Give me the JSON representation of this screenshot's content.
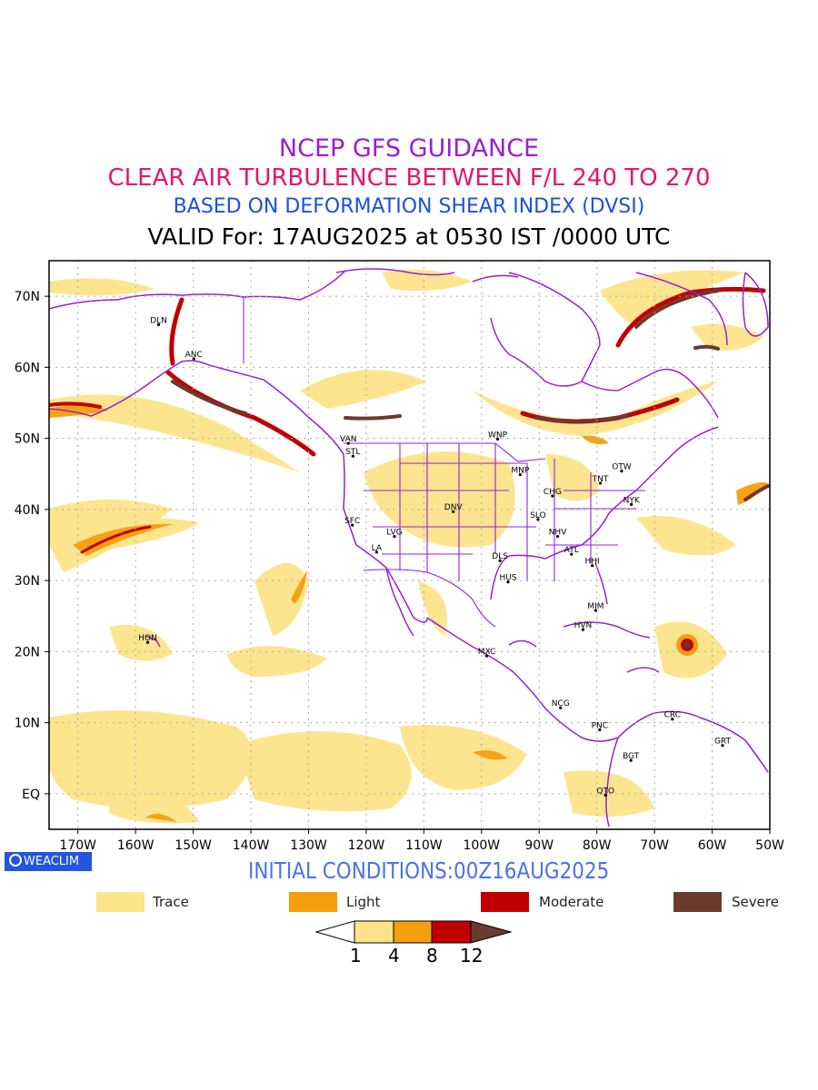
{
  "titles": {
    "line1": "NCEP GFS GUIDANCE",
    "line2": "CLEAR AIR TURBULENCE BETWEEN F/L 240 TO 270",
    "line3": "BASED ON DEFORMATION SHEAR INDEX (DVSI)",
    "line4": "VALID For: 17AUG2025 at 0530 IST /0000 UTC"
  },
  "map": {
    "lon_range": [
      -175,
      -50
    ],
    "lat_range": [
      -5,
      75
    ],
    "lat_tick_labels": [
      "EQ",
      "10N",
      "20N",
      "30N",
      "40N",
      "50N",
      "60N",
      "70N"
    ],
    "lat_tick_values": [
      0,
      10,
      20,
      30,
      40,
      50,
      60,
      70
    ],
    "lon_tick_labels": [
      "170W",
      "160W",
      "150W",
      "140W",
      "130W",
      "120W",
      "110W",
      "100W",
      "90W",
      "80W",
      "70W",
      "60W",
      "50W"
    ],
    "lon_tick_values": [
      -170,
      -160,
      -150,
      -140,
      -130,
      -120,
      -110,
      -100,
      -90,
      -80,
      -70,
      -60,
      -50
    ],
    "grid": "dotted",
    "colors": {
      "border": "#9a1fd1",
      "trace": "#fde48a",
      "light": "#f59e0b",
      "moderate": "#c00000",
      "severe": "#6b3a2e"
    },
    "stations": [
      {
        "id": "DLN",
        "lat": 66.0,
        "lon": -156.0
      },
      {
        "id": "ANC",
        "lat": 61.2,
        "lon": -149.9
      },
      {
        "id": "VAN",
        "lat": 49.3,
        "lon": -123.1
      },
      {
        "id": "STL",
        "lat": 47.5,
        "lon": -122.3
      },
      {
        "id": "WNP",
        "lat": 49.9,
        "lon": -97.2
      },
      {
        "id": "MNP",
        "lat": 44.9,
        "lon": -93.3
      },
      {
        "id": "OTW",
        "lat": 45.4,
        "lon": -75.7
      },
      {
        "id": "TNT",
        "lat": 43.7,
        "lon": -79.4
      },
      {
        "id": "CHG",
        "lat": 41.9,
        "lon": -87.7
      },
      {
        "id": "NYK",
        "lat": 40.7,
        "lon": -74.0
      },
      {
        "id": "DNV",
        "lat": 39.7,
        "lon": -104.9
      },
      {
        "id": "SFC",
        "lat": 37.8,
        "lon": -122.4
      },
      {
        "id": "SLO",
        "lat": 38.6,
        "lon": -90.2
      },
      {
        "id": "LVG",
        "lat": 36.2,
        "lon": -115.1
      },
      {
        "id": "NHV",
        "lat": 36.2,
        "lon": -86.8
      },
      {
        "id": "LA",
        "lat": 34.0,
        "lon": -118.2
      },
      {
        "id": "ATL",
        "lat": 33.7,
        "lon": -84.4
      },
      {
        "id": "DLS",
        "lat": 32.8,
        "lon": -96.8
      },
      {
        "id": "HHI",
        "lat": 32.1,
        "lon": -80.8
      },
      {
        "id": "HUS",
        "lat": 29.8,
        "lon": -95.4
      },
      {
        "id": "MIM",
        "lat": 25.8,
        "lon": -80.2
      },
      {
        "id": "HON",
        "lat": 21.3,
        "lon": -157.9
      },
      {
        "id": "HVN",
        "lat": 23.1,
        "lon": -82.4
      },
      {
        "id": "MXC",
        "lat": 19.4,
        "lon": -99.1
      },
      {
        "id": "NCG",
        "lat": 12.1,
        "lon": -86.3
      },
      {
        "id": "CRC",
        "lat": 10.5,
        "lon": -66.9
      },
      {
        "id": "PNC",
        "lat": 9.0,
        "lon": -79.5
      },
      {
        "id": "GRT",
        "lat": 6.8,
        "lon": -58.2
      },
      {
        "id": "BGT",
        "lat": 4.7,
        "lon": -74.1
      },
      {
        "id": "QTO",
        "lat": -0.2,
        "lon": -78.5
      }
    ]
  },
  "footer": {
    "badge": "WEACLIM",
    "initial_conditions": "INITIAL CONDITIONS:00Z16AUG2025"
  },
  "legend": [
    {
      "label": "Trace",
      "color": "#fde48a"
    },
    {
      "label": "Light",
      "color": "#f59e0b"
    },
    {
      "label": "Moderate",
      "color": "#c00000"
    },
    {
      "label": "Severe",
      "color": "#6b3a2e"
    }
  ],
  "colorbar": {
    "labels": [
      "1",
      "4",
      "8",
      "12"
    ],
    "colors": [
      "#ffffff",
      "#fde48a",
      "#f59e0b",
      "#c00000",
      "#6b3a2e"
    ]
  }
}
